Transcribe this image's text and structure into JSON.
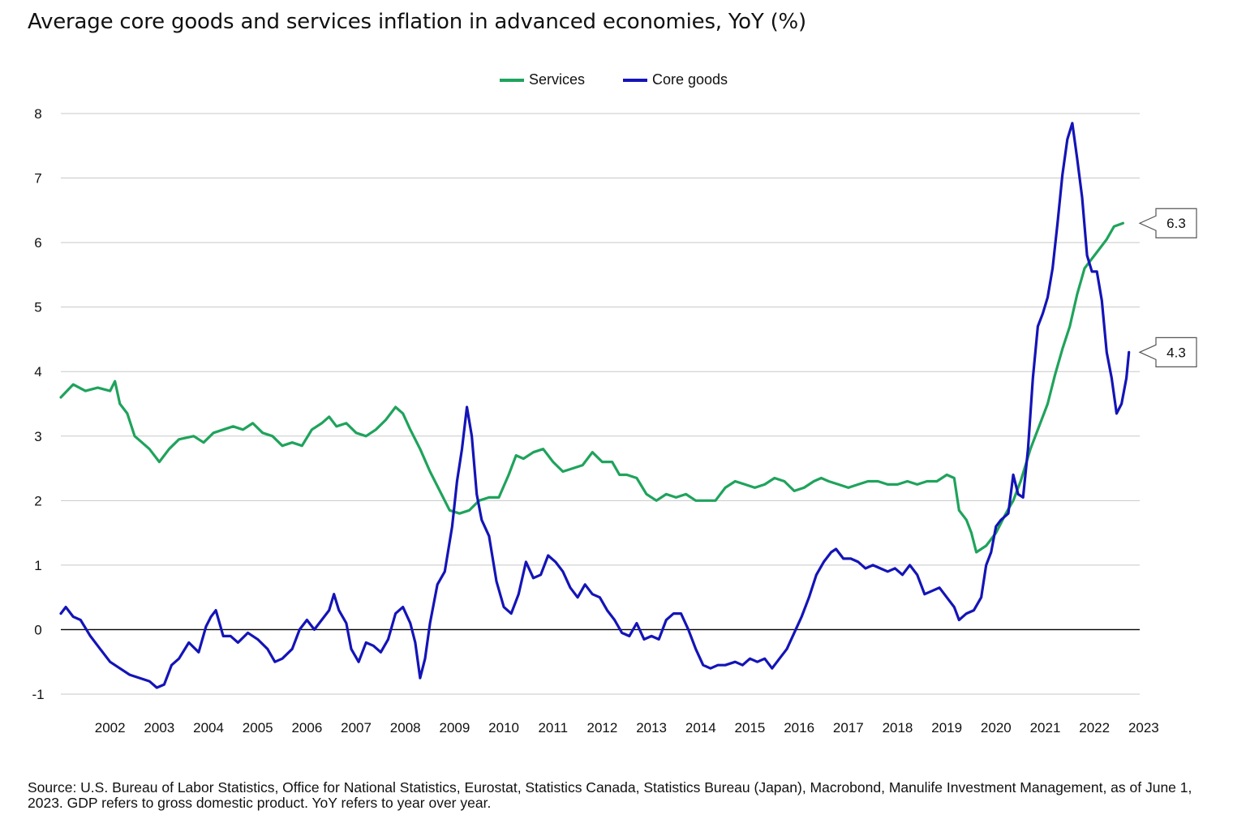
{
  "title": "Average core goods and services inflation in advanced economies, YoY (%)",
  "source": "Source: U.S. Bureau of Labor Statistics, Office for National Statistics, Eurostat, Statistics Canada, Statistics Bureau (Japan), Macrobond, Manulife Investment Management, as of June 1, 2023. GDP refers to gross domestic product. YoY refers to year over year.",
  "legend": [
    {
      "label": "Services",
      "color": "#1fa35c"
    },
    {
      "label": "Core goods",
      "color": "#1414b8"
    }
  ],
  "chart_data": {
    "type": "line",
    "title": "Average core goods and services inflation in advanced economies, YoY (%)",
    "xlabel": "",
    "ylabel": "",
    "xlim": [
      2001.5,
      2023.42
    ],
    "ylim": [
      -1,
      8
    ],
    "yticks": [
      -1,
      0,
      1,
      2,
      3,
      4,
      5,
      6,
      7,
      8
    ],
    "xtick_labels": [
      "2002",
      "2003",
      "2004",
      "2005",
      "2006",
      "2007",
      "2008",
      "2009",
      "2010",
      "2011",
      "2012",
      "2013",
      "2014",
      "2015",
      "2016",
      "2017",
      "2018",
      "2019",
      "2020",
      "2021",
      "2022",
      "2023"
    ],
    "grid": "horizontal",
    "legend_position": "top-center",
    "series": [
      {
        "name": "Services",
        "color": "#1fa35c",
        "points": [
          [
            2001.5,
            3.6
          ],
          [
            2001.75,
            3.8
          ],
          [
            2002.0,
            3.7
          ],
          [
            2002.25,
            3.75
          ],
          [
            2002.5,
            3.7
          ],
          [
            2002.6,
            3.85
          ],
          [
            2002.7,
            3.5
          ],
          [
            2002.85,
            3.35
          ],
          [
            2003.0,
            3.0
          ],
          [
            2003.15,
            2.9
          ],
          [
            2003.3,
            2.8
          ],
          [
            2003.5,
            2.6
          ],
          [
            2003.7,
            2.8
          ],
          [
            2003.9,
            2.95
          ],
          [
            2004.2,
            3.0
          ],
          [
            2004.4,
            2.9
          ],
          [
            2004.6,
            3.05
          ],
          [
            2004.8,
            3.1
          ],
          [
            2005.0,
            3.15
          ],
          [
            2005.2,
            3.1
          ],
          [
            2005.4,
            3.2
          ],
          [
            2005.6,
            3.05
          ],
          [
            2005.8,
            3.0
          ],
          [
            2006.0,
            2.85
          ],
          [
            2006.2,
            2.9
          ],
          [
            2006.4,
            2.85
          ],
          [
            2006.6,
            3.1
          ],
          [
            2006.8,
            3.2
          ],
          [
            2006.95,
            3.3
          ],
          [
            2007.1,
            3.15
          ],
          [
            2007.3,
            3.2
          ],
          [
            2007.5,
            3.05
          ],
          [
            2007.7,
            3.0
          ],
          [
            2007.9,
            3.1
          ],
          [
            2008.1,
            3.25
          ],
          [
            2008.3,
            3.45
          ],
          [
            2008.45,
            3.35
          ],
          [
            2008.6,
            3.1
          ],
          [
            2008.8,
            2.8
          ],
          [
            2009.0,
            2.45
          ],
          [
            2009.2,
            2.15
          ],
          [
            2009.4,
            1.85
          ],
          [
            2009.6,
            1.8
          ],
          [
            2009.8,
            1.85
          ],
          [
            2010.0,
            2.0
          ],
          [
            2010.2,
            2.05
          ],
          [
            2010.4,
            2.05
          ],
          [
            2010.6,
            2.4
          ],
          [
            2010.75,
            2.7
          ],
          [
            2010.9,
            2.65
          ],
          [
            2011.1,
            2.75
          ],
          [
            2011.3,
            2.8
          ],
          [
            2011.5,
            2.6
          ],
          [
            2011.7,
            2.45
          ],
          [
            2011.9,
            2.5
          ],
          [
            2012.1,
            2.55
          ],
          [
            2012.3,
            2.75
          ],
          [
            2012.5,
            2.6
          ],
          [
            2012.7,
            2.6
          ],
          [
            2012.85,
            2.4
          ],
          [
            2013.0,
            2.4
          ],
          [
            2013.2,
            2.35
          ],
          [
            2013.4,
            2.1
          ],
          [
            2013.6,
            2.0
          ],
          [
            2013.8,
            2.1
          ],
          [
            2014.0,
            2.05
          ],
          [
            2014.2,
            2.1
          ],
          [
            2014.4,
            2.0
          ],
          [
            2014.6,
            2.0
          ],
          [
            2014.8,
            2.0
          ],
          [
            2015.0,
            2.2
          ],
          [
            2015.2,
            2.3
          ],
          [
            2015.4,
            2.25
          ],
          [
            2015.6,
            2.2
          ],
          [
            2015.8,
            2.25
          ],
          [
            2016.0,
            2.35
          ],
          [
            2016.2,
            2.3
          ],
          [
            2016.4,
            2.15
          ],
          [
            2016.6,
            2.2
          ],
          [
            2016.8,
            2.3
          ],
          [
            2016.95,
            2.35
          ],
          [
            2017.1,
            2.3
          ],
          [
            2017.3,
            2.25
          ],
          [
            2017.5,
            2.2
          ],
          [
            2017.7,
            2.25
          ],
          [
            2017.9,
            2.3
          ],
          [
            2018.1,
            2.3
          ],
          [
            2018.3,
            2.25
          ],
          [
            2018.5,
            2.25
          ],
          [
            2018.7,
            2.3
          ],
          [
            2018.9,
            2.25
          ],
          [
            2019.1,
            2.3
          ],
          [
            2019.3,
            2.3
          ],
          [
            2019.5,
            2.4
          ],
          [
            2019.65,
            2.35
          ],
          [
            2019.75,
            1.85
          ],
          [
            2019.9,
            1.7
          ],
          [
            2020.0,
            1.5
          ],
          [
            2020.1,
            1.2
          ],
          [
            2020.3,
            1.3
          ],
          [
            2020.5,
            1.5
          ],
          [
            2020.7,
            1.8
          ],
          [
            2020.85,
            2.0
          ],
          [
            2021.0,
            2.3
          ],
          [
            2021.2,
            2.8
          ],
          [
            2021.4,
            3.2
          ],
          [
            2021.55,
            3.5
          ],
          [
            2021.7,
            3.95
          ],
          [
            2021.85,
            4.35
          ],
          [
            2022.0,
            4.7
          ],
          [
            2022.15,
            5.2
          ],
          [
            2022.3,
            5.6
          ],
          [
            2022.45,
            5.75
          ],
          [
            2022.6,
            5.9
          ],
          [
            2022.75,
            6.05
          ],
          [
            2022.9,
            6.25
          ],
          [
            2023.08,
            6.3
          ]
        ]
      },
      {
        "name": "Core goods",
        "color": "#1414b8",
        "points": [
          [
            2001.5,
            0.25
          ],
          [
            2001.6,
            0.35
          ],
          [
            2001.75,
            0.2
          ],
          [
            2001.9,
            0.15
          ],
          [
            2002.1,
            -0.1
          ],
          [
            2002.3,
            -0.3
          ],
          [
            2002.5,
            -0.5
          ],
          [
            2002.7,
            -0.6
          ],
          [
            2002.9,
            -0.7
          ],
          [
            2003.1,
            -0.75
          ],
          [
            2003.3,
            -0.8
          ],
          [
            2003.45,
            -0.9
          ],
          [
            2003.6,
            -0.85
          ],
          [
            2003.75,
            -0.55
          ],
          [
            2003.9,
            -0.45
          ],
          [
            2004.1,
            -0.2
          ],
          [
            2004.3,
            -0.35
          ],
          [
            2004.45,
            0.05
          ],
          [
            2004.55,
            0.2
          ],
          [
            2004.65,
            0.3
          ],
          [
            2004.8,
            -0.1
          ],
          [
            2004.95,
            -0.1
          ],
          [
            2005.1,
            -0.2
          ],
          [
            2005.3,
            -0.05
          ],
          [
            2005.5,
            -0.15
          ],
          [
            2005.7,
            -0.3
          ],
          [
            2005.85,
            -0.5
          ],
          [
            2006.0,
            -0.45
          ],
          [
            2006.2,
            -0.3
          ],
          [
            2006.35,
            0.0
          ],
          [
            2006.5,
            0.15
          ],
          [
            2006.65,
            0.0
          ],
          [
            2006.8,
            0.15
          ],
          [
            2006.95,
            0.3
          ],
          [
            2007.05,
            0.55
          ],
          [
            2007.15,
            0.3
          ],
          [
            2007.3,
            0.1
          ],
          [
            2007.4,
            -0.3
          ],
          [
            2007.55,
            -0.5
          ],
          [
            2007.7,
            -0.2
          ],
          [
            2007.85,
            -0.25
          ],
          [
            2008.0,
            -0.35
          ],
          [
            2008.15,
            -0.15
          ],
          [
            2008.3,
            0.25
          ],
          [
            2008.45,
            0.35
          ],
          [
            2008.6,
            0.1
          ],
          [
            2008.7,
            -0.2
          ],
          [
            2008.8,
            -0.75
          ],
          [
            2008.9,
            -0.45
          ],
          [
            2009.0,
            0.1
          ],
          [
            2009.15,
            0.7
          ],
          [
            2009.3,
            0.9
          ],
          [
            2009.45,
            1.6
          ],
          [
            2009.55,
            2.3
          ],
          [
            2009.65,
            2.8
          ],
          [
            2009.75,
            3.45
          ],
          [
            2009.85,
            3.0
          ],
          [
            2009.95,
            2.1
          ],
          [
            2010.05,
            1.7
          ],
          [
            2010.2,
            1.45
          ],
          [
            2010.35,
            0.75
          ],
          [
            2010.5,
            0.35
          ],
          [
            2010.65,
            0.25
          ],
          [
            2010.8,
            0.55
          ],
          [
            2010.95,
            1.05
          ],
          [
            2011.1,
            0.8
          ],
          [
            2011.25,
            0.85
          ],
          [
            2011.4,
            1.15
          ],
          [
            2011.55,
            1.05
          ],
          [
            2011.7,
            0.9
          ],
          [
            2011.85,
            0.65
          ],
          [
            2012.0,
            0.5
          ],
          [
            2012.15,
            0.7
          ],
          [
            2012.3,
            0.55
          ],
          [
            2012.45,
            0.5
          ],
          [
            2012.6,
            0.3
          ],
          [
            2012.75,
            0.15
          ],
          [
            2012.9,
            -0.05
          ],
          [
            2013.05,
            -0.1
          ],
          [
            2013.2,
            0.1
          ],
          [
            2013.35,
            -0.15
          ],
          [
            2013.5,
            -0.1
          ],
          [
            2013.65,
            -0.15
          ],
          [
            2013.8,
            0.15
          ],
          [
            2013.95,
            0.25
          ],
          [
            2014.1,
            0.25
          ],
          [
            2014.25,
            0.0
          ],
          [
            2014.4,
            -0.3
          ],
          [
            2014.55,
            -0.55
          ],
          [
            2014.7,
            -0.6
          ],
          [
            2014.85,
            -0.55
          ],
          [
            2015.0,
            -0.55
          ],
          [
            2015.2,
            -0.5
          ],
          [
            2015.35,
            -0.55
          ],
          [
            2015.5,
            -0.45
          ],
          [
            2015.65,
            -0.5
          ],
          [
            2015.8,
            -0.45
          ],
          [
            2015.95,
            -0.6
          ],
          [
            2016.1,
            -0.45
          ],
          [
            2016.25,
            -0.3
          ],
          [
            2016.4,
            -0.05
          ],
          [
            2016.55,
            0.2
          ],
          [
            2016.7,
            0.5
          ],
          [
            2016.85,
            0.85
          ],
          [
            2017.0,
            1.05
          ],
          [
            2017.15,
            1.2
          ],
          [
            2017.25,
            1.25
          ],
          [
            2017.4,
            1.1
          ],
          [
            2017.55,
            1.1
          ],
          [
            2017.7,
            1.05
          ],
          [
            2017.85,
            0.95
          ],
          [
            2018.0,
            1.0
          ],
          [
            2018.15,
            0.95
          ],
          [
            2018.3,
            0.9
          ],
          [
            2018.45,
            0.95
          ],
          [
            2018.6,
            0.85
          ],
          [
            2018.75,
            1.0
          ],
          [
            2018.9,
            0.85
          ],
          [
            2019.05,
            0.55
          ],
          [
            2019.2,
            0.6
          ],
          [
            2019.35,
            0.65
          ],
          [
            2019.5,
            0.5
          ],
          [
            2019.65,
            0.35
          ],
          [
            2019.75,
            0.15
          ],
          [
            2019.9,
            0.25
          ],
          [
            2020.05,
            0.3
          ],
          [
            2020.2,
            0.5
          ],
          [
            2020.3,
            1.0
          ],
          [
            2020.4,
            1.2
          ],
          [
            2020.5,
            1.6
          ],
          [
            2020.6,
            1.7
          ],
          [
            2020.75,
            1.8
          ],
          [
            2020.85,
            2.4
          ],
          [
            2020.95,
            2.1
          ],
          [
            2021.05,
            2.05
          ],
          [
            2021.15,
            2.8
          ],
          [
            2021.25,
            3.9
          ],
          [
            2021.35,
            4.7
          ],
          [
            2021.45,
            4.9
          ],
          [
            2021.55,
            5.15
          ],
          [
            2021.65,
            5.6
          ],
          [
            2021.75,
            6.3
          ],
          [
            2021.85,
            7.05
          ],
          [
            2021.95,
            7.6
          ],
          [
            2022.05,
            7.85
          ],
          [
            2022.15,
            7.3
          ],
          [
            2022.25,
            6.7
          ],
          [
            2022.35,
            5.8
          ],
          [
            2022.45,
            5.55
          ],
          [
            2022.55,
            5.55
          ],
          [
            2022.65,
            5.1
          ],
          [
            2022.75,
            4.3
          ],
          [
            2022.85,
            3.9
          ],
          [
            2022.95,
            3.35
          ],
          [
            2023.05,
            3.5
          ],
          [
            2023.15,
            3.9
          ],
          [
            2023.2,
            4.3
          ]
        ]
      }
    ],
    "annotations": [
      {
        "series": "Services",
        "label": "6.3",
        "value": 6.3
      },
      {
        "series": "Core goods",
        "label": "4.3",
        "value": 4.3
      }
    ]
  }
}
